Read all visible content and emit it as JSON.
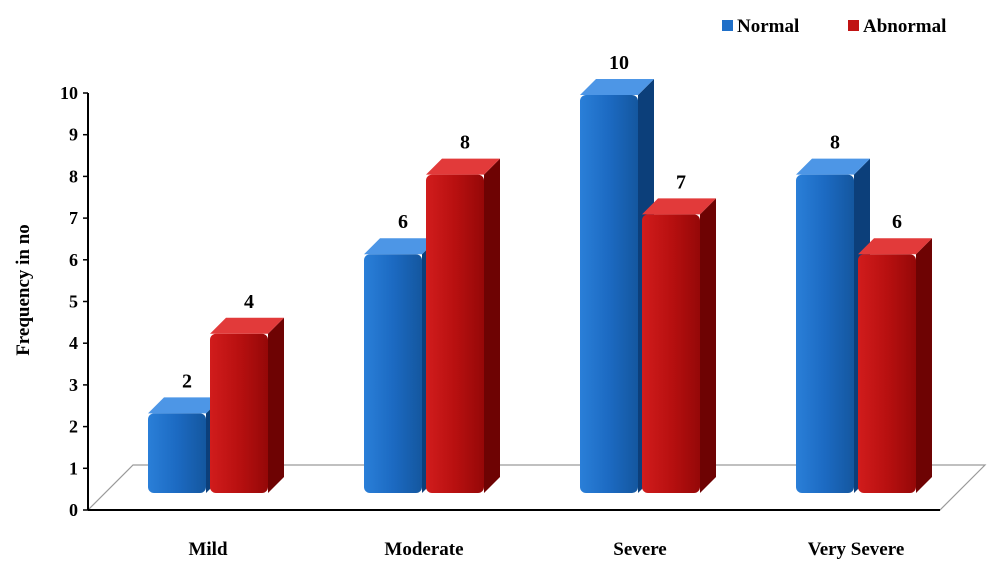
{
  "chart_data": {
    "type": "bar",
    "categories": [
      "Mild",
      "Moderate",
      "Severe",
      "Very Severe"
    ],
    "series": [
      {
        "name": "Normal",
        "values": [
          2,
          6,
          10,
          8
        ],
        "color": "#1f6fc8",
        "side_color": "#0c3f7a",
        "top_color": "#4d96e6"
      },
      {
        "name": "Abnormal",
        "values": [
          4,
          8,
          7,
          6
        ],
        "color": "#c01313",
        "side_color": "#6e0303",
        "top_color": "#e23a3a"
      }
    ],
    "title": "",
    "xlabel": "",
    "ylabel": "Frequency in no",
    "ylim": [
      0,
      10
    ],
    "yticks": [
      "0",
      "1",
      "2",
      "3",
      "4",
      "5",
      "6",
      "7",
      "8",
      "9",
      "10"
    ],
    "data_labels": true,
    "legend_position": "top-right",
    "style": "3d-bar"
  }
}
